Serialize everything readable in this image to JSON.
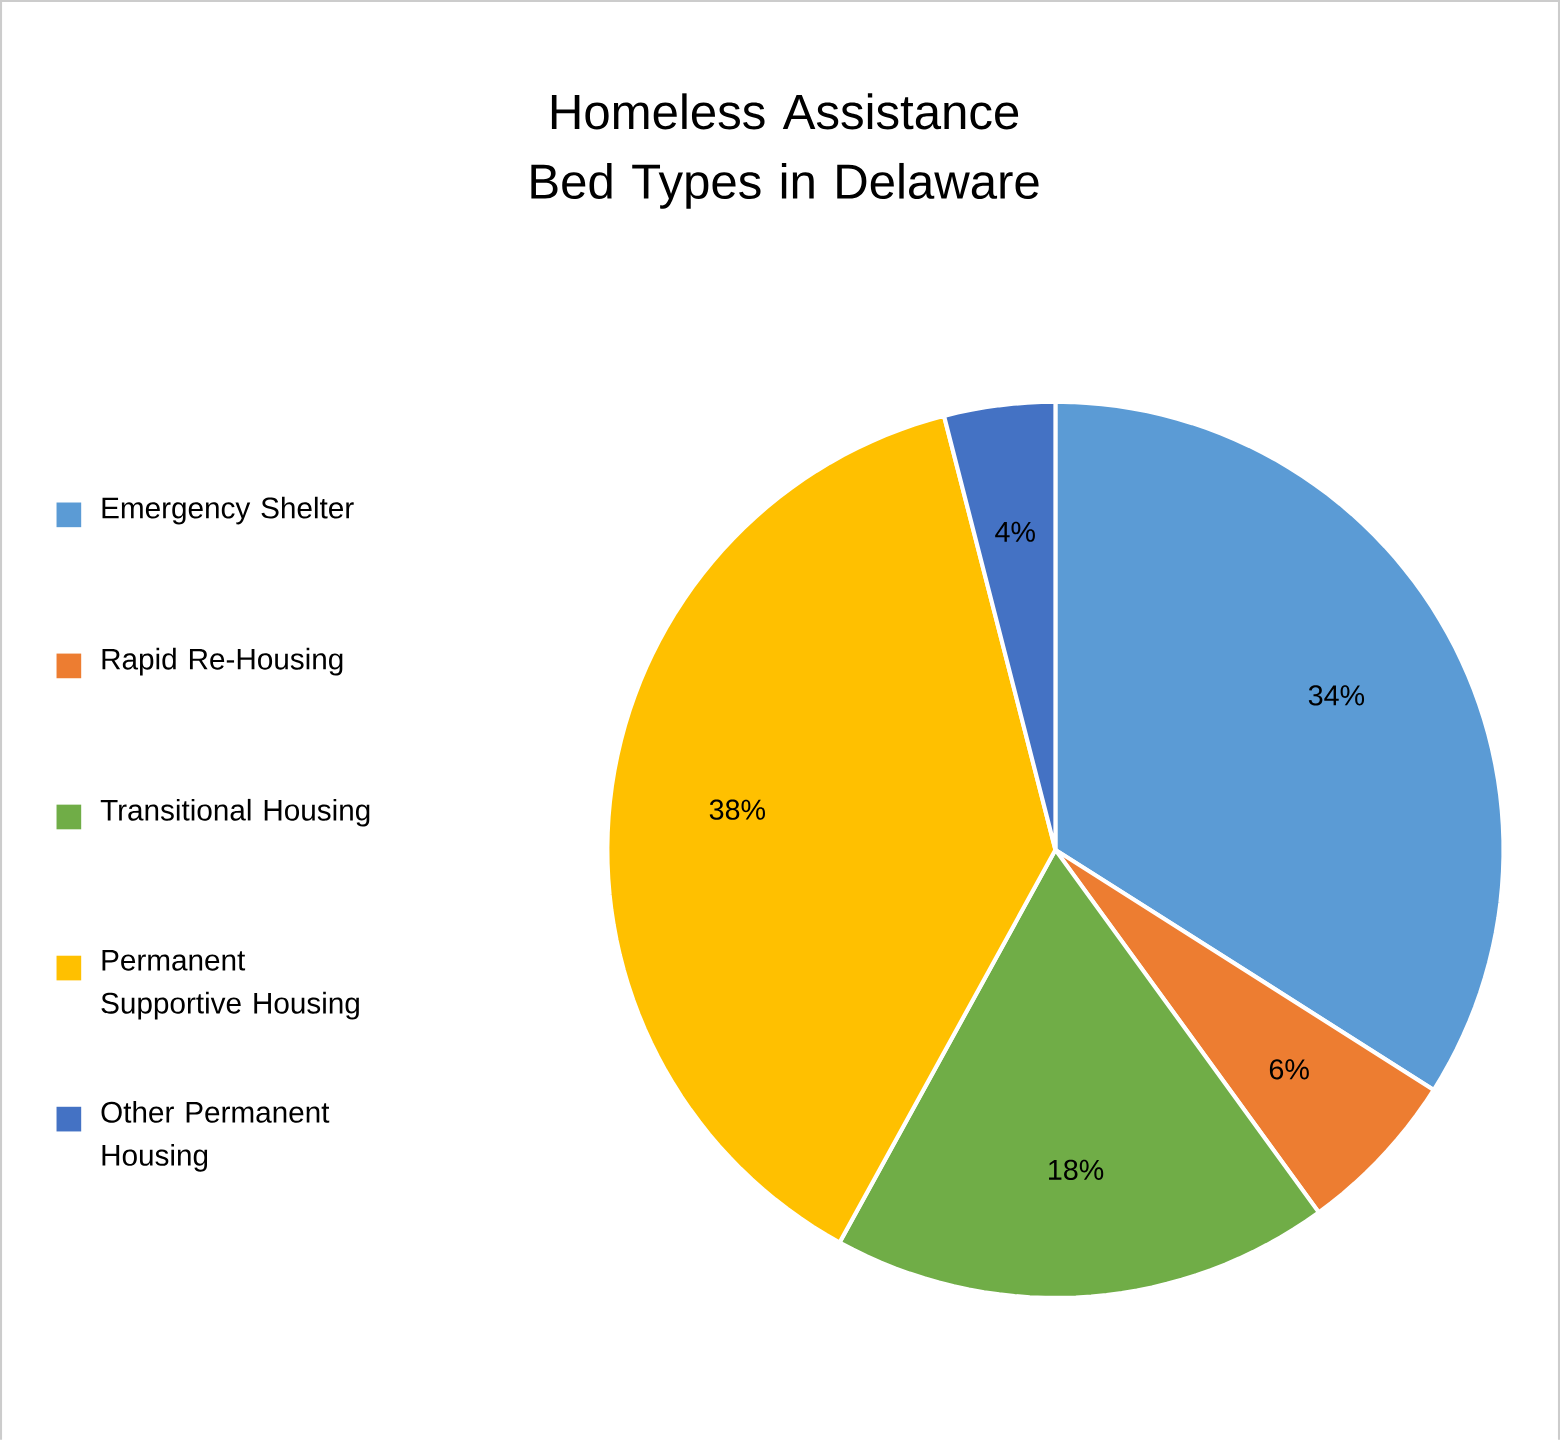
{
  "chart_data": {
    "type": "pie",
    "title": "Homeless Assistance Bed Types in Delaware",
    "categories": [
      "Emergency Shelter",
      "Rapid Re-Housing",
      "Transitional Housing",
      "Permanent Supportive Housing",
      "Other Permanent Housing"
    ],
    "values": [
      34,
      6,
      18,
      38,
      4
    ],
    "colors": [
      "#5b9bd5",
      "#ed7d31",
      "#70ad47",
      "#ffc000",
      "#4472c4"
    ],
    "value_labels": [
      "34%",
      "6%",
      "18%",
      "38%",
      "4%"
    ],
    "legend": "left"
  }
}
